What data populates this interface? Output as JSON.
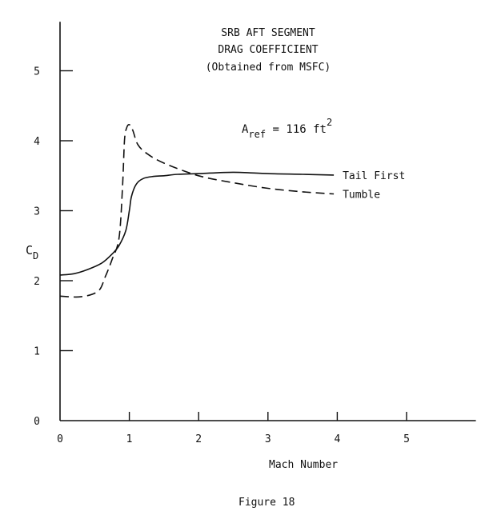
{
  "chart_data": {
    "type": "line",
    "title_lines": [
      "SRB AFT SEGMENT",
      "DRAG COEFFICIENT",
      "(Obtained from MSFC)"
    ],
    "annotation": {
      "base": "A",
      "sub": "ref",
      "text": " = 116 ft",
      "sup": "2"
    },
    "xlabel": "Mach Number",
    "ylabel": {
      "base": "C",
      "sub": "D"
    },
    "xlim": [
      0,
      6
    ],
    "ylim": [
      0,
      5.7
    ],
    "xticks": [
      0,
      1,
      2,
      3,
      4,
      5
    ],
    "yticks": [
      0,
      1,
      2,
      3,
      4,
      5
    ],
    "grid": false,
    "series": [
      {
        "name": "Tail First",
        "style": "solid",
        "x": [
          0.0,
          0.2,
          0.4,
          0.6,
          0.75,
          0.85,
          0.95,
          1.0,
          1.03,
          1.1,
          1.2,
          1.35,
          1.5,
          1.7,
          2.0,
          2.5,
          3.0,
          3.5,
          3.95
        ],
        "y": [
          2.08,
          2.1,
          2.16,
          2.25,
          2.38,
          2.5,
          2.72,
          3.0,
          3.2,
          3.38,
          3.46,
          3.49,
          3.5,
          3.52,
          3.53,
          3.55,
          3.53,
          3.52,
          3.51
        ]
      },
      {
        "name": "Tumble",
        "style": "dashed",
        "x": [
          0.0,
          0.3,
          0.55,
          0.65,
          0.75,
          0.85,
          0.9,
          0.93,
          0.96,
          1.0,
          1.05,
          1.12,
          1.25,
          1.5,
          2.0,
          2.5,
          3.0,
          3.5,
          3.95
        ],
        "y": [
          1.78,
          1.77,
          1.85,
          2.05,
          2.3,
          2.6,
          3.3,
          4.0,
          4.18,
          4.23,
          4.15,
          3.95,
          3.82,
          3.68,
          3.5,
          3.4,
          3.32,
          3.27,
          3.24
        ]
      }
    ],
    "caption": "Figure 18"
  }
}
